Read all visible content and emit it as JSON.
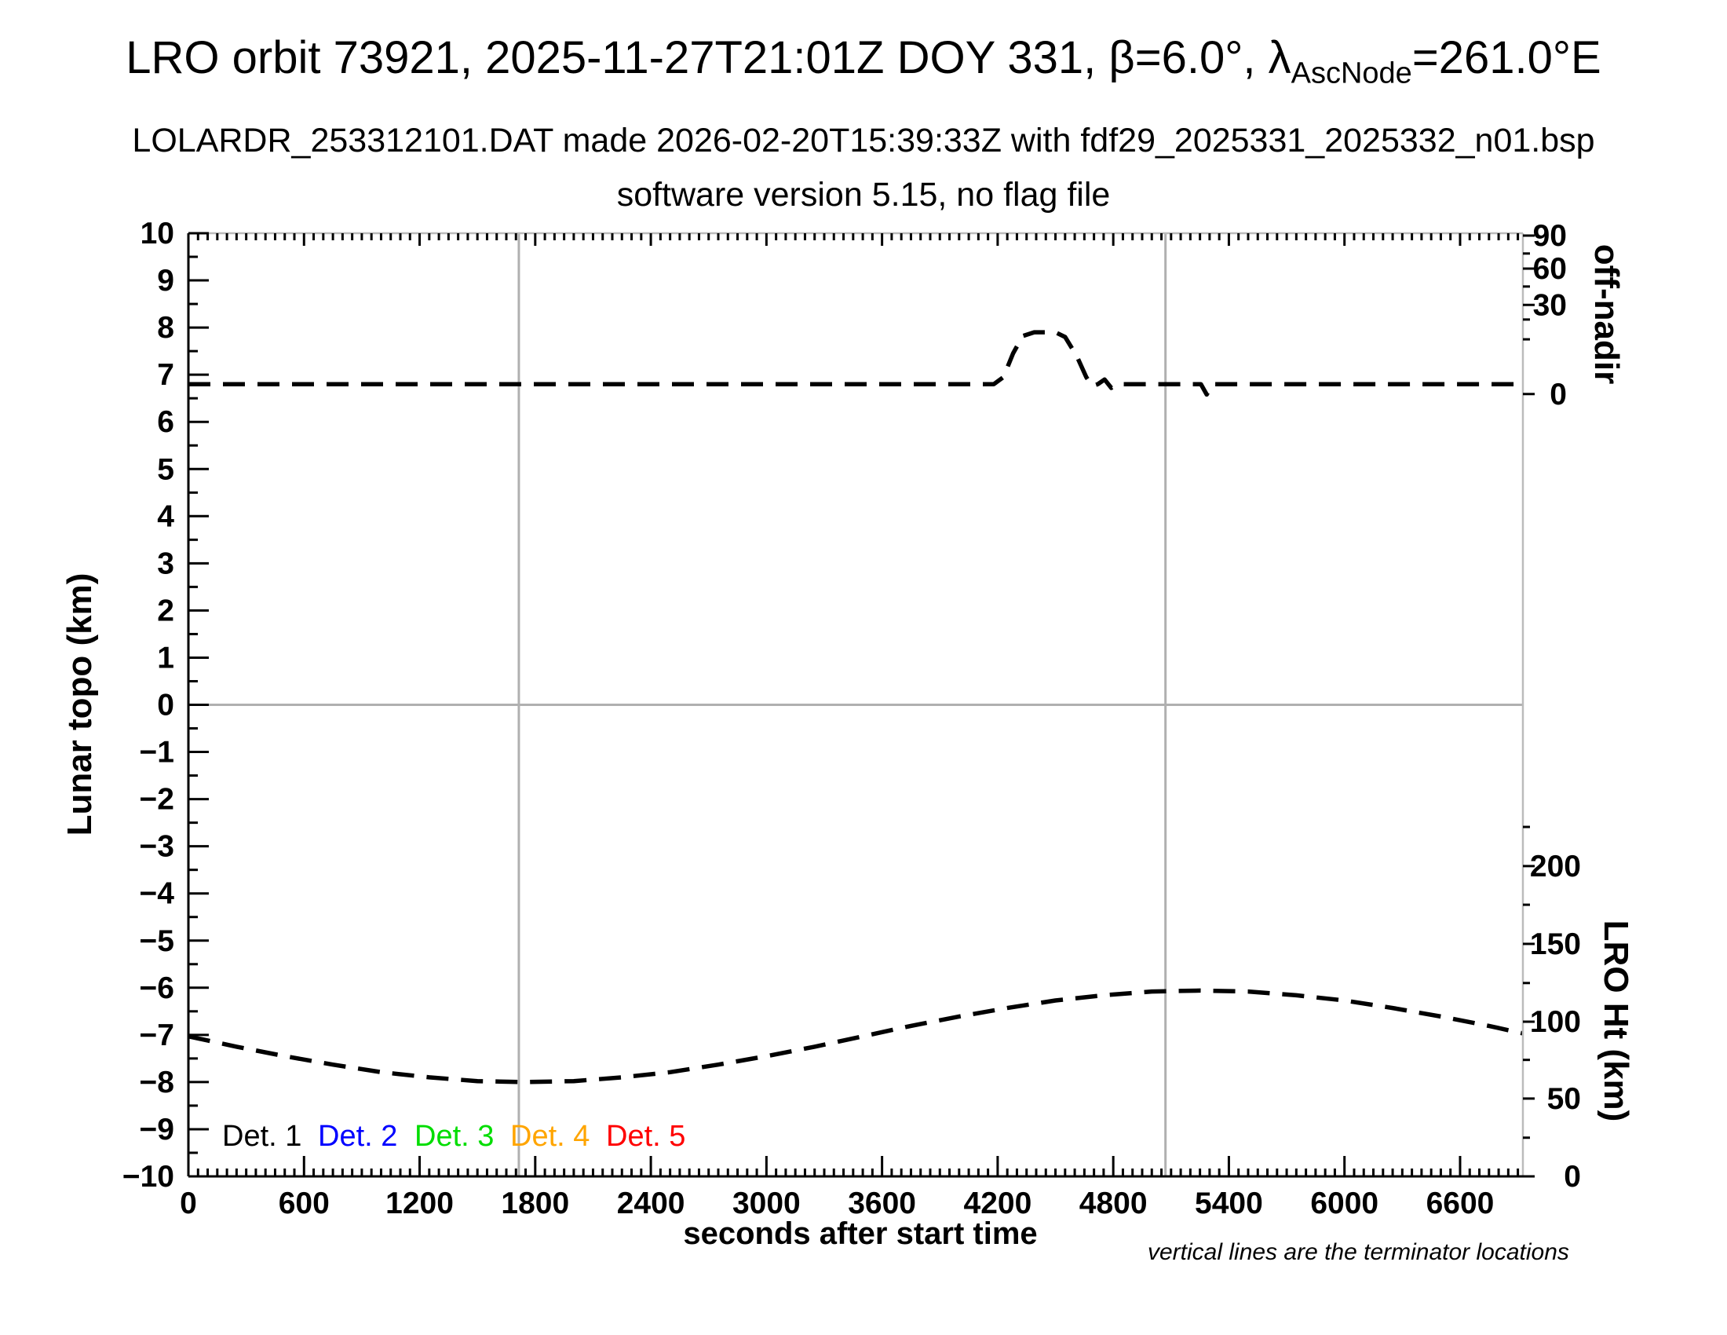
{
  "header": {
    "title_part1": "LRO orbit 73921, 2025-11-27T21:01Z DOY 331, β=6.0°, λ",
    "title_subscript": "AscNode",
    "title_part2": "=261.0°E",
    "subtitle1": "LOLARDR_253312101.DAT made 2026-02-20T15:39:33Z with fdf29_2025331_2025332_n01.bsp",
    "subtitle2": "software version 5.15, no flag file"
  },
  "footnote": "vertical lines are the terminator locations",
  "legend": {
    "items": [
      {
        "label": "Det. 1",
        "color": "#000000"
      },
      {
        "label": "Det. 2",
        "color": "#0000ff"
      },
      {
        "label": "Det. 3",
        "color": "#00dd00"
      },
      {
        "label": "Det. 4",
        "color": "#ffa500"
      },
      {
        "label": "Det. 5",
        "color": "#ff0000"
      }
    ]
  },
  "chart_data": {
    "type": "line",
    "xlabel": "seconds after start time",
    "ylabel_left": "Lunar topo (km)",
    "ylabel_right_top": "off-nadir",
    "ylabel_right_bottom": "LRO Ht (km)",
    "xlim": [
      0,
      6926
    ],
    "ylim_left": [
      -10,
      10
    ],
    "x_major_ticks": [
      0,
      600,
      1200,
      1800,
      2400,
      3000,
      3600,
      4200,
      4800,
      5400,
      6000,
      6600
    ],
    "x_minor_step": 50,
    "y_major_step": 1,
    "y_minor_step": 0.5,
    "grid": {
      "zero_line_v": 0,
      "terminator_lines_t": [
        1715,
        5071
      ],
      "color": "#b0b0b0"
    },
    "off_nadir_axis": {
      "major": [
        {
          "label": "90",
          "v": 9.95
        },
        {
          "label": "60",
          "v": 9.25
        },
        {
          "label": "30",
          "v": 8.48
        },
        {
          "label": "0",
          "v": 6.59
        }
      ],
      "minor_v": [
        9.57,
        8.87,
        8.17,
        7.75
      ]
    },
    "lro_ht_axis": {
      "major": [
        {
          "label": "200",
          "v": -3.42
        },
        {
          "label": "150",
          "v": -5.07
        },
        {
          "label": "100",
          "v": -6.72
        },
        {
          "label": "50",
          "v": -8.35
        },
        {
          "label": "0",
          "v": -10.0
        }
      ],
      "minor_v": [
        -2.59,
        -4.24,
        -5.9,
        -7.53,
        -9.18
      ]
    },
    "series": [
      {
        "name": "spacecraft off-nadir angle (reads on upper right axis; flat near 0 deg with slew to ~20 deg near t=4300-4550 s)",
        "color": "#000000",
        "style": "dashed",
        "points": [
          [
            0,
            6.8
          ],
          [
            400,
            6.8
          ],
          [
            800,
            6.8
          ],
          [
            1200,
            6.8
          ],
          [
            1600,
            6.8
          ],
          [
            2000,
            6.8
          ],
          [
            2400,
            6.8
          ],
          [
            2800,
            6.8
          ],
          [
            3200,
            6.8
          ],
          [
            3600,
            6.8
          ],
          [
            4000,
            6.8
          ],
          [
            4180,
            6.8
          ],
          [
            4230,
            6.95
          ],
          [
            4280,
            7.45
          ],
          [
            4330,
            7.82
          ],
          [
            4390,
            7.9
          ],
          [
            4500,
            7.9
          ],
          [
            4550,
            7.8
          ],
          [
            4610,
            7.4
          ],
          [
            4660,
            6.95
          ],
          [
            4690,
            6.76
          ],
          [
            4720,
            6.8
          ],
          [
            4755,
            6.9
          ],
          [
            4790,
            6.72
          ],
          [
            4820,
            6.8
          ],
          [
            5000,
            6.8
          ],
          [
            5255,
            6.8
          ],
          [
            5285,
            6.58
          ],
          [
            5315,
            6.8
          ],
          [
            5600,
            6.8
          ],
          [
            6000,
            6.8
          ],
          [
            6400,
            6.8
          ],
          [
            6926,
            6.8
          ]
        ]
      },
      {
        "name": "LRO height above surface (reads on lower right axis; ~90 km at start, min ~60 km near t=1750 s, max ~119 km near t=5250 s)",
        "color": "#000000",
        "style": "dashed",
        "points": [
          [
            0,
            -7.03
          ],
          [
            250,
            -7.25
          ],
          [
            500,
            -7.45
          ],
          [
            750,
            -7.63
          ],
          [
            1000,
            -7.79
          ],
          [
            1250,
            -7.9
          ],
          [
            1500,
            -7.98
          ],
          [
            1750,
            -8.0
          ],
          [
            2000,
            -7.98
          ],
          [
            2250,
            -7.9
          ],
          [
            2500,
            -7.79
          ],
          [
            2750,
            -7.63
          ],
          [
            3000,
            -7.45
          ],
          [
            3250,
            -7.25
          ],
          [
            3500,
            -7.03
          ],
          [
            3750,
            -6.81
          ],
          [
            4000,
            -6.61
          ],
          [
            4250,
            -6.43
          ],
          [
            4500,
            -6.27
          ],
          [
            4750,
            -6.16
          ],
          [
            5000,
            -6.08
          ],
          [
            5250,
            -6.06
          ],
          [
            5500,
            -6.08
          ],
          [
            5750,
            -6.16
          ],
          [
            6000,
            -6.27
          ],
          [
            6250,
            -6.43
          ],
          [
            6500,
            -6.61
          ],
          [
            6750,
            -6.81
          ],
          [
            6926,
            -6.97
          ]
        ]
      }
    ]
  },
  "colors": {
    "axis": "#000000",
    "box_light": "#bbbbbb",
    "guide": "#b0b0b0"
  }
}
